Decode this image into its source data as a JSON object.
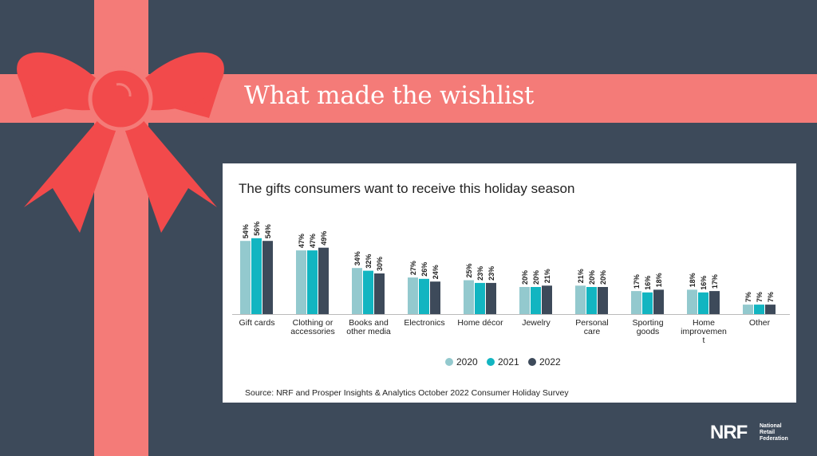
{
  "banner": {
    "title": "What made the wishlist"
  },
  "colors": {
    "background": "#3d4a5a",
    "ribbon": "#f47b78",
    "bow": "#f24a4b",
    "series_2020": "#93c9ce",
    "series_2021": "#12b5c1",
    "series_2022": "#3d4a5a"
  },
  "chart_data": {
    "type": "bar",
    "title": "The gifts consumers want to receive this holiday season",
    "categories": [
      "Gift cards",
      "Clothing or accessories",
      "Books and other media",
      "Electronics",
      "Home décor",
      "Jewelry",
      "Personal care",
      "Sporting goods",
      "Home improvement",
      "Other"
    ],
    "category_lines": [
      [
        "Gift cards"
      ],
      [
        "Clothing or",
        "accessories"
      ],
      [
        "Books and",
        "other media"
      ],
      [
        "Electronics"
      ],
      [
        "Home décor"
      ],
      [
        "Jewelry"
      ],
      [
        "Personal",
        "care"
      ],
      [
        "Sporting",
        "goods"
      ],
      [
        "Home",
        "improvemen",
        "t"
      ],
      [
        "Other"
      ]
    ],
    "series": [
      {
        "name": "2020",
        "values": [
          54,
          47,
          34,
          27,
          25,
          20,
          21,
          17,
          18,
          7
        ]
      },
      {
        "name": "2021",
        "values": [
          56,
          47,
          32,
          26,
          23,
          20,
          20,
          16,
          16,
          7
        ]
      },
      {
        "name": "2022",
        "values": [
          54,
          49,
          30,
          24,
          23,
          21,
          20,
          18,
          17,
          7
        ]
      }
    ],
    "value_suffix": "%",
    "ylim": [
      0,
      60
    ],
    "legend_position": "bottom-center",
    "grid": false,
    "xlabel": "",
    "ylabel": ""
  },
  "source": "Source: NRF and Prosper Insights & Analytics October 2022 Consumer Holiday Survey",
  "logo": {
    "mark": "NRF",
    "lines": [
      "National",
      "Retail",
      "Federation"
    ]
  }
}
